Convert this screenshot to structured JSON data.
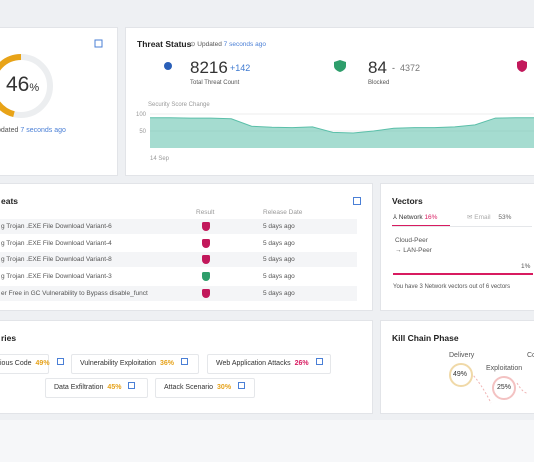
{
  "overview": {
    "value": 46,
    "unit": "%",
    "updated_label": "pdated",
    "updated_time": "7 seconds ago"
  },
  "threat_status": {
    "title": "Threat Status",
    "updated_label": "Updated",
    "updated_time": "7 seconds ago",
    "total": {
      "value": "8216",
      "delta": "+142",
      "label": "Total Threat Count"
    },
    "blocked": {
      "value": "84",
      "sep": "-",
      "other": "4372",
      "label": "Blocked"
    }
  },
  "chart_data": {
    "type": "area",
    "title": "Security Score Change",
    "color": "#5bbfa9",
    "x": [
      "14 Sep",
      null,
      null,
      null,
      null,
      null,
      null,
      null,
      null,
      null,
      null,
      null,
      null,
      null,
      null,
      null,
      null,
      null,
      null,
      null
    ],
    "values": [
      89,
      89,
      88,
      88,
      86,
      64,
      61,
      60,
      62,
      46,
      44,
      50,
      58,
      60,
      60,
      62,
      68,
      88,
      89,
      89
    ],
    "ylim": [
      0,
      100
    ],
    "yticks": [
      100,
      50
    ]
  },
  "threats": {
    "title": "eats",
    "headers": [
      "Result",
      "Release Date"
    ],
    "rows": [
      [
        "g Trojan .EXE File Download Variant-6",
        "5 days ago"
      ],
      [
        "g Trojan .EXE File Download Variant-4",
        "5 days ago"
      ],
      [
        "g Trojan .EXE File Download Variant-8",
        "5 days ago"
      ],
      [
        "g Trojan .EXE File Download Variant-3",
        "5 days ago"
      ],
      [
        "er Free in GC Vulnerability to Bypass disable_funct",
        "5 days ago"
      ]
    ],
    "result_colors": [
      "#c2185b",
      "#c2185b",
      "#c2185b",
      "#2e9e6b",
      "#c2185b"
    ]
  },
  "vectors": {
    "title": "Vectors",
    "tabs": [
      {
        "label": "Network",
        "value": "16%"
      },
      {
        "label": "Email",
        "value": "53%"
      }
    ],
    "item": {
      "from": "Cloud-Peer",
      "to": "→ LAN-Peer",
      "value": "1%"
    },
    "footer": "You have 3 Network vectors out of 6 vectors"
  },
  "categories": {
    "title": "ries",
    "chips": [
      {
        "label": "ious Code",
        "value": "49%",
        "color": "#e6a21a"
      },
      {
        "label": "Vulnerability Exploitation",
        "value": "36%",
        "color": "#e6a21a"
      },
      {
        "label": "Web Application Attacks",
        "value": "26%",
        "color": "#d81b60"
      },
      {
        "label": "Data Exfiltration",
        "value": "45%",
        "color": "#e6a21a"
      },
      {
        "label": "Attack Scenario",
        "value": "30%",
        "color": "#e6a21a"
      }
    ]
  },
  "kill_chain": {
    "title": "Kill Chain Phase",
    "phases": [
      {
        "label": "Delivery",
        "value": "49%"
      },
      {
        "label": "Exploitation",
        "value": "25%"
      },
      {
        "label": "Co"
      }
    ]
  }
}
